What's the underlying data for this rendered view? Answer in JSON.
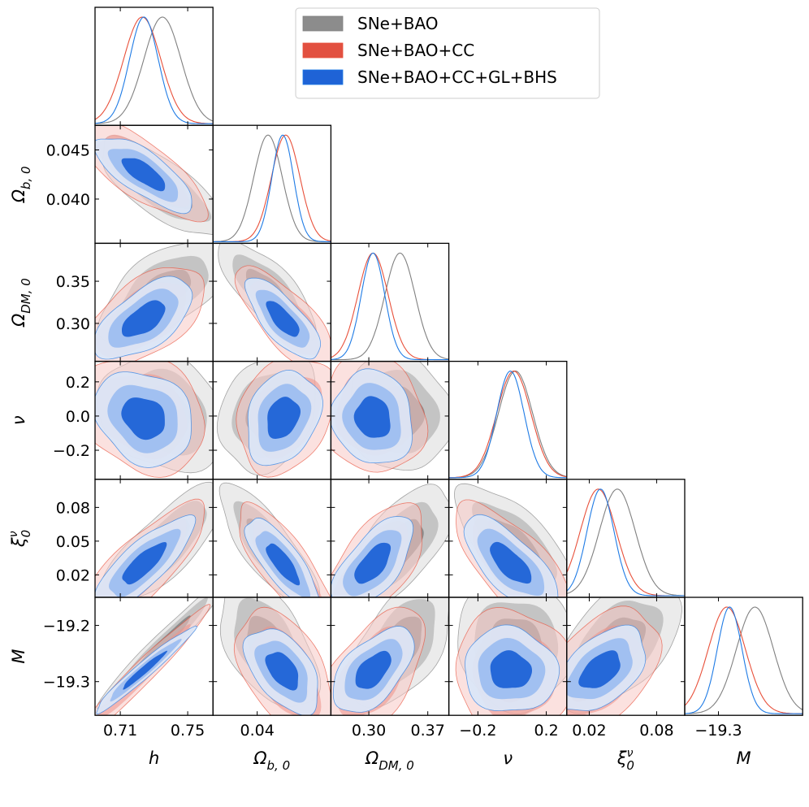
{
  "chart_data": {
    "type": "corner",
    "title": "",
    "parameters": [
      {
        "key": "h",
        "label": "h",
        "label_sub": "",
        "mean": 0.728,
        "sd": 0.012,
        "range": [
          0.695,
          0.765
        ],
        "ticks": [
          0.71,
          0.75
        ],
        "tick_labels": [
          "0.71",
          "0.75"
        ]
      },
      {
        "key": "ob",
        "label": "Ω",
        "label_sub": "b, 0",
        "mean": 0.0423,
        "sd": 0.0013,
        "range": [
          0.0355,
          0.0475
        ],
        "ticks": [
          0.04,
          0.045
        ],
        "tick_labels": [
          "0.040",
          "0.045"
        ],
        "x_ticks": [
          0.04
        ],
        "x_tick_labels": [
          "0.04"
        ]
      },
      {
        "key": "odm",
        "label": "Ω",
        "label_sub": "DM, 0",
        "mean": 0.318,
        "sd": 0.018,
        "range": [
          0.255,
          0.395
        ],
        "ticks": [
          0.3,
          0.35
        ],
        "tick_labels": [
          "0.30",
          "0.35"
        ],
        "x_ticks": [
          0.3,
          0.37
        ],
        "x_tick_labels": [
          "0.30",
          "0.37"
        ]
      },
      {
        "key": "nu",
        "label": "ν",
        "label_sub": "",
        "mean": 0.0,
        "sd": 0.1,
        "range": [
          -0.37,
          0.32
        ],
        "ticks": [
          -0.2,
          0.0,
          0.2
        ],
        "tick_labels": [
          "−0.2",
          "0.0",
          "0.2"
        ],
        "x_ticks": [
          -0.2,
          0.2
        ],
        "x_tick_labels": [
          "−0.2",
          "0.2"
        ]
      },
      {
        "key": "xi",
        "label": "ξ",
        "label_sub": "0",
        "label_sup": "ν",
        "mean": 0.035,
        "sd": 0.015,
        "range": [
          0.0,
          0.105
        ],
        "ticks": [
          0.02,
          0.05,
          0.08
        ],
        "tick_labels": [
          "0.02",
          "0.05",
          "0.08"
        ],
        "x_ticks": [
          0.02,
          0.08
        ],
        "x_tick_labels": [
          "0.02",
          "0.08"
        ]
      },
      {
        "key": "M",
        "label": "M",
        "label_sub": "",
        "mean": -19.265,
        "sd": 0.033,
        "range": [
          -19.36,
          -19.15
        ],
        "ticks": [
          -19.2,
          -19.3
        ],
        "tick_labels": [
          "−19.2",
          "−19.3"
        ],
        "x_ticks": [
          -19.3
        ],
        "x_tick_labels": [
          "−19.3"
        ]
      }
    ],
    "series": [
      {
        "name": "SNe+BAO",
        "color": "#808080",
        "fill1": "#ebebeb",
        "fill2": "#c4c4c4",
        "fill3": "#8c8c8c",
        "fill_opacity": 1.0,
        "means": [
          0.735,
          0.0411,
          0.337,
          0.02,
          0.045,
          -19.235
        ],
        "sds": [
          0.011,
          0.00145,
          0.018,
          0.1,
          0.016,
          0.033
        ]
      },
      {
        "name": "SNe+BAO+CC",
        "color": "#e8503a",
        "fill1": "#f7c9c4",
        "fill2": "#ee9288",
        "fill3": "#e25040",
        "fill_opacity": 0.55,
        "means": [
          0.723,
          0.0429,
          0.305,
          0.01,
          0.028,
          -19.285
        ],
        "sds": [
          0.011,
          0.00145,
          0.018,
          0.1,
          0.016,
          0.033
        ]
      },
      {
        "name": "SNe+BAO+CC+GL+BHS",
        "color": "#1f7be5",
        "fill1": "#dbe6f7",
        "fill2": "#9dbef0",
        "fill3": "#1f63d6",
        "fill_opacity": 0.95,
        "means": [
          0.724,
          0.0426,
          0.305,
          -0.01,
          0.03,
          -19.28
        ],
        "sds": [
          0.0085,
          0.0011,
          0.014,
          0.08,
          0.012,
          0.022
        ]
      }
    ],
    "correlations": {
      "1-0": -0.75,
      "2-0": 0.6,
      "2-1": -0.75,
      "3-0": -0.2,
      "3-1": 0.25,
      "3-2": -0.1,
      "4-0": 0.8,
      "4-1": -0.8,
      "4-2": 0.65,
      "4-3": -0.7,
      "5-0": 0.97,
      "5-1": -0.5,
      "5-2": 0.55,
      "5-3": -0.05,
      "5-4": 0.5
    },
    "legend": {
      "placement": "top-right",
      "entries": [
        "SNe+BAO",
        "SNe+BAO+CC",
        "SNe+BAO+CC+GL+BHS"
      ]
    }
  }
}
